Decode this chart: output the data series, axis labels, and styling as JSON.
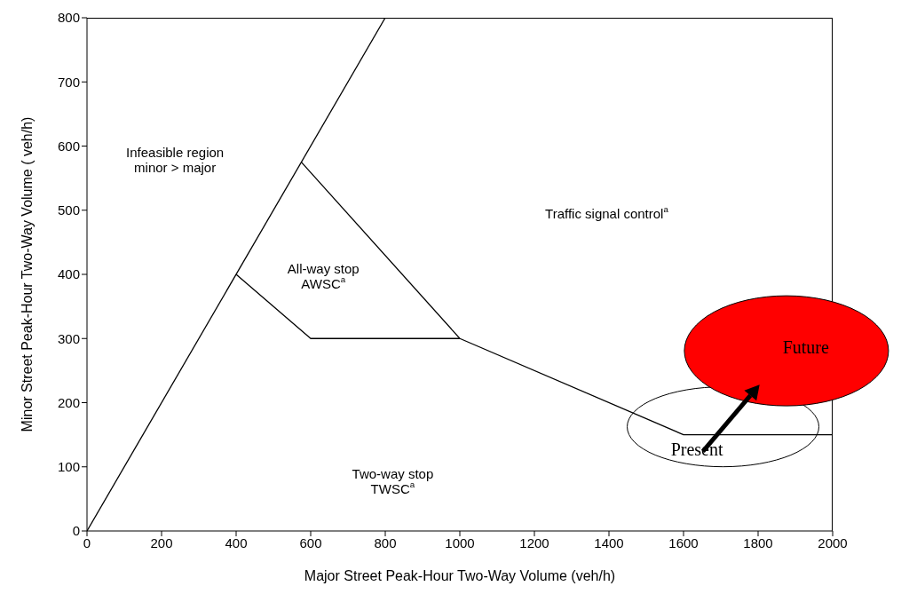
{
  "chart_data": {
    "type": "line",
    "xlabel": "Major Street Peak-Hour Two-Way Volume (veh/h)",
    "ylabel": "Minor Street Peak-Hour Two-Way Volume ( veh/h)",
    "xlim": [
      0,
      2000
    ],
    "xticks": [
      0,
      200,
      400,
      600,
      800,
      1000,
      1200,
      1400,
      1600,
      1800,
      2000
    ],
    "ylim": [
      0,
      800
    ],
    "yticks": [
      0,
      100,
      200,
      300,
      400,
      500,
      600,
      700,
      800
    ],
    "marker": "none",
    "line_style": "solid",
    "series": [
      {
        "color": "#000000",
        "x": [
          0,
          800
        ],
        "values": [
          0,
          800
        ]
      },
      {
        "color": "#000000",
        "x": [
          400,
          600,
          1000
        ],
        "values": [
          400,
          300,
          300
        ]
      },
      {
        "color": "#000000",
        "x": [
          575,
          1000,
          1600,
          2000
        ],
        "values": [
          575,
          300,
          150,
          150
        ]
      }
    ],
    "annotations": [
      "Infeasible region\nminor > major",
      "All-way stop\nAWSC$^{a}$",
      "Traffic signal control$^{a}$",
      "Two-way stop\nTWSC$^{a}$",
      "Present",
      "Future"
    ]
  }
}
